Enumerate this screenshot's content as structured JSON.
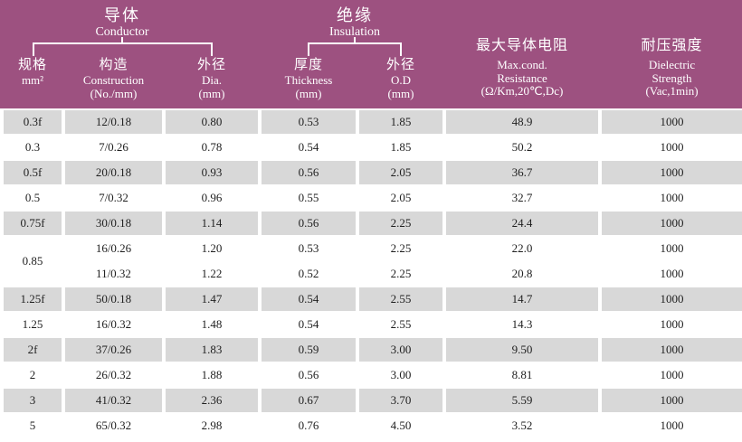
{
  "colors": {
    "header_bg": "#9d5180",
    "header_text": "#ffffff",
    "row_gray": "#d8d8d8",
    "row_white": "#ffffff",
    "body_text": "#1f1f1f"
  },
  "chart_data": {
    "type": "table",
    "groups": [
      {
        "zh": "导体",
        "en": "Conductor"
      },
      {
        "zh": "绝缘",
        "en": "Insulation"
      }
    ],
    "columns": [
      {
        "zh": "规格",
        "en": "mm²",
        "en2": "",
        "unit": ""
      },
      {
        "zh": "构造",
        "en": "Construction",
        "en2": "",
        "unit": "(No./mm)"
      },
      {
        "zh": "外径",
        "en": "Dia.",
        "en2": "",
        "unit": "(mm)"
      },
      {
        "zh": "厚度",
        "en": "Thickness",
        "en2": "",
        "unit": "(mm)"
      },
      {
        "zh": "外径",
        "en": "O.D",
        "en2": "",
        "unit": "(mm)"
      },
      {
        "zh": "最大导体电阻",
        "en": "Max.cond.",
        "en2": "Resistance",
        "unit": "(Ω/Km,20℃,Dc)"
      },
      {
        "zh": "耐压强度",
        "en": "Dielectric",
        "en2": "Strength",
        "unit": "(Vac,1min)"
      }
    ],
    "rows": [
      {
        "shade": "gray",
        "cells": [
          "0.3f",
          "12/0.18",
          "0.80",
          "0.53",
          "1.85",
          "48.9",
          "1000"
        ]
      },
      {
        "shade": "white",
        "cells": [
          "0.3",
          "7/0.26",
          "0.78",
          "0.54",
          "1.85",
          "50.2",
          "1000"
        ]
      },
      {
        "shade": "gray",
        "cells": [
          "0.5f",
          "20/0.18",
          "0.93",
          "0.56",
          "2.05",
          "36.7",
          "1000"
        ]
      },
      {
        "shade": "white",
        "cells": [
          "0.5",
          "7/0.32",
          "0.96",
          "0.55",
          "2.05",
          "32.7",
          "1000"
        ]
      },
      {
        "shade": "gray",
        "cells": [
          "0.75f",
          "30/0.18",
          "1.14",
          "0.56",
          "2.25",
          "24.4",
          "1000"
        ]
      },
      {
        "shade": "white",
        "spec_rowspan": 2,
        "cells": [
          "0.85",
          "16/0.26",
          "1.20",
          "0.53",
          "2.25",
          "22.0",
          "1000"
        ]
      },
      {
        "shade": "white",
        "cells": [
          "11/0.32",
          "1.22",
          "0.52",
          "2.25",
          "20.8",
          "1000"
        ]
      },
      {
        "shade": "gray",
        "cells": [
          "1.25f",
          "50/0.18",
          "1.47",
          "0.54",
          "2.55",
          "14.7",
          "1000"
        ]
      },
      {
        "shade": "white",
        "cells": [
          "1.25",
          "16/0.32",
          "1.48",
          "0.54",
          "2.55",
          "14.3",
          "1000"
        ]
      },
      {
        "shade": "gray",
        "cells": [
          "2f",
          "37/0.26",
          "1.83",
          "0.59",
          "3.00",
          "9.50",
          "1000"
        ]
      },
      {
        "shade": "white",
        "cells": [
          "2",
          "26/0.32",
          "1.88",
          "0.56",
          "3.00",
          "8.81",
          "1000"
        ]
      },
      {
        "shade": "gray",
        "cells": [
          "3",
          "41/0.32",
          "2.36",
          "0.67",
          "3.70",
          "5.59",
          "1000"
        ]
      },
      {
        "shade": "white",
        "cells": [
          "5",
          "65/0.32",
          "2.98",
          "0.76",
          "4.50",
          "3.52",
          "1000"
        ]
      }
    ]
  }
}
